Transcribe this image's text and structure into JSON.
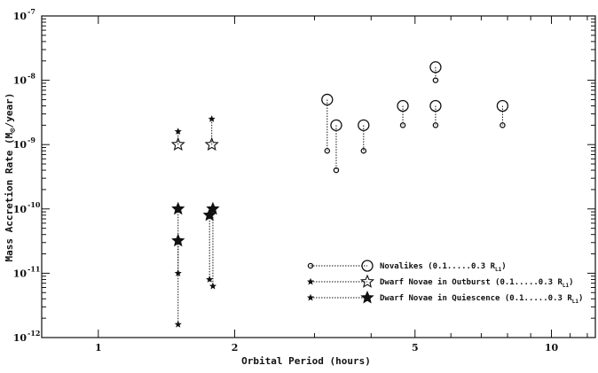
{
  "chart_data": {
    "type": "scatter",
    "x_scale": "log",
    "y_scale": "log",
    "xlim": [
      0.75,
      12.5
    ],
    "ylim": [
      1e-12,
      1e-07
    ],
    "xlabel": "Orbital Period (hours)",
    "ylabel": "Mass Accretion Rate (M⊙/year)",
    "ylabel_parts": [
      "Mass Accretion Rate (M",
      "⊙",
      "/year)"
    ],
    "x_ticks": [
      {
        "value": 1,
        "label": "1"
      },
      {
        "value": 2,
        "label": "2"
      },
      {
        "value": 5,
        "label": "5"
      },
      {
        "value": 10,
        "label": "10"
      }
    ],
    "y_ticks": [
      {
        "value": 1e-12,
        "base": "10",
        "exp": "-12"
      },
      {
        "value": 1e-11,
        "base": "10",
        "exp": "-11"
      },
      {
        "value": 1e-10,
        "base": "10",
        "exp": "-10"
      },
      {
        "value": 1e-09,
        "base": "10",
        "exp": "-9"
      },
      {
        "value": 1e-08,
        "base": "10",
        "exp": "-8"
      },
      {
        "value": 1e-07,
        "base": "10",
        "exp": "-7"
      }
    ],
    "grid": false,
    "legend_position": "bottom-right",
    "series": [
      {
        "name": "Novalikes (0.1.....0.3 R_L1)",
        "legend_text": "Novalikes (0.1.....0.3 R",
        "legend_sub": "L1",
        "marker": "circle",
        "color": "#000000",
        "points": [
          {
            "x": 3.2,
            "y_high": 5e-09,
            "y_low": 8e-10
          },
          {
            "x": 3.35,
            "y_high": 2e-09,
            "y_low": 4e-10
          },
          {
            "x": 3.85,
            "y_high": 2e-09,
            "y_low": 8e-10
          },
          {
            "x": 4.7,
            "y_high": 4e-09,
            "y_low": 2e-09
          },
          {
            "x": 5.55,
            "y_high": 1.6e-08,
            "y_low": 1e-08
          },
          {
            "x": 5.55,
            "y_high": 4e-09,
            "y_low": 2e-09
          },
          {
            "x": 7.8,
            "y_high": 4e-09,
            "y_low": 2e-09
          }
        ]
      },
      {
        "name": "Dwarf Novae in Outburst (0.1.....0.3 R_L1)",
        "legend_text": "Dwarf Novae in Outburst (0.1.....0.3 R",
        "legend_sub": "L1",
        "marker": "open-star",
        "color": "#000000",
        "points": [
          {
            "x": 1.5,
            "y_high": 1e-09,
            "y_low": 1.6e-09
          },
          {
            "x": 1.78,
            "y_high": 1e-09,
            "y_low": 2.5e-09
          }
        ]
      },
      {
        "name": "Dwarf Novae in Quiescence (0.1.....0.3 R_L1)",
        "legend_text": "Dwarf Novae in Quiescence (0.1.....0.3 R",
        "legend_sub": "L1",
        "marker": "filled-star",
        "color": "#000000",
        "points": [
          {
            "x": 1.5,
            "y_high": 1e-10,
            "y_low": 1e-11
          },
          {
            "x": 1.5,
            "y_high": 3.2e-11,
            "y_low": 1.6e-12
          },
          {
            "x": 1.76,
            "y_high": 8e-11,
            "y_low": 8e-12
          },
          {
            "x": 1.79,
            "y_high": 1e-10,
            "y_low": 6.3e-12
          }
        ]
      }
    ]
  }
}
